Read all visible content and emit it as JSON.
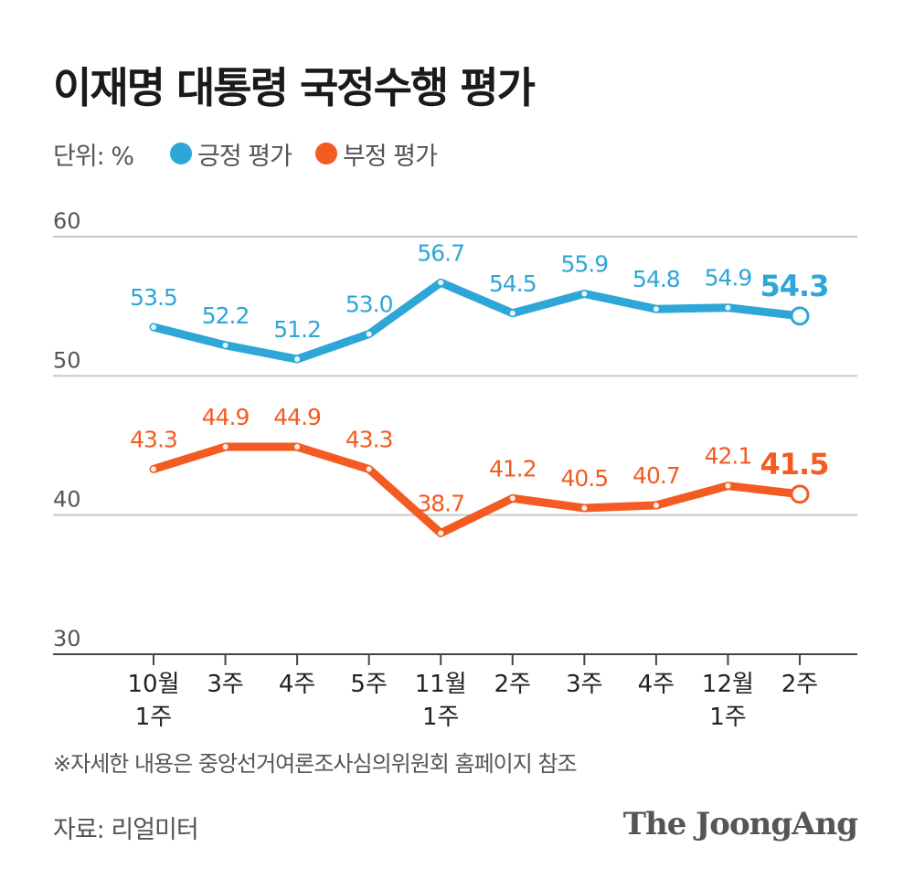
{
  "title": "이재명 대통령 국정수행 평가",
  "legend": {
    "unit": "단위: %",
    "items": [
      {
        "label": "긍정 평가",
        "color": "#2ea6d8"
      },
      {
        "label": "부정 평가",
        "color": "#f35b22"
      }
    ]
  },
  "footnote": "※자세한 내용은 중앙선거여론조사심의위원회 홈페이지 참조",
  "source": "자료: 리얼미터",
  "brand": "The JoongAng",
  "chart_data": {
    "type": "line",
    "title": "이재명 대통령 국정수행 평가",
    "ylabel": "%",
    "ylim": [
      30,
      60
    ],
    "yticks": [
      30,
      40,
      50,
      60
    ],
    "grid": true,
    "legend_position": "top-left",
    "categories": [
      [
        "10월",
        "1주"
      ],
      [
        "3주"
      ],
      [
        "4주"
      ],
      [
        "5주"
      ],
      [
        "11월",
        "1주"
      ],
      [
        "2주"
      ],
      [
        "3주"
      ],
      [
        "4주"
      ],
      [
        "12월",
        "1주"
      ],
      [
        "2주"
      ]
    ],
    "series": [
      {
        "name": "긍정 평가",
        "color": "#2ea6d8",
        "values": [
          53.5,
          52.2,
          51.2,
          53.0,
          56.7,
          54.5,
          55.9,
          54.8,
          54.9,
          54.3
        ],
        "labels": [
          "53.5",
          "52.2",
          "51.2",
          "53.0",
          "56.7",
          "54.5",
          "55.9",
          "54.8",
          "54.9",
          "54.3"
        ]
      },
      {
        "name": "부정 평가",
        "color": "#f35b22",
        "values": [
          43.3,
          44.9,
          44.9,
          43.3,
          38.7,
          41.2,
          40.5,
          40.7,
          42.1,
          41.5
        ],
        "labels": [
          "43.3",
          "44.9",
          "44.9",
          "43.3",
          "38.7",
          "41.2",
          "40.5",
          "40.7",
          "42.1",
          "41.5"
        ]
      }
    ]
  }
}
